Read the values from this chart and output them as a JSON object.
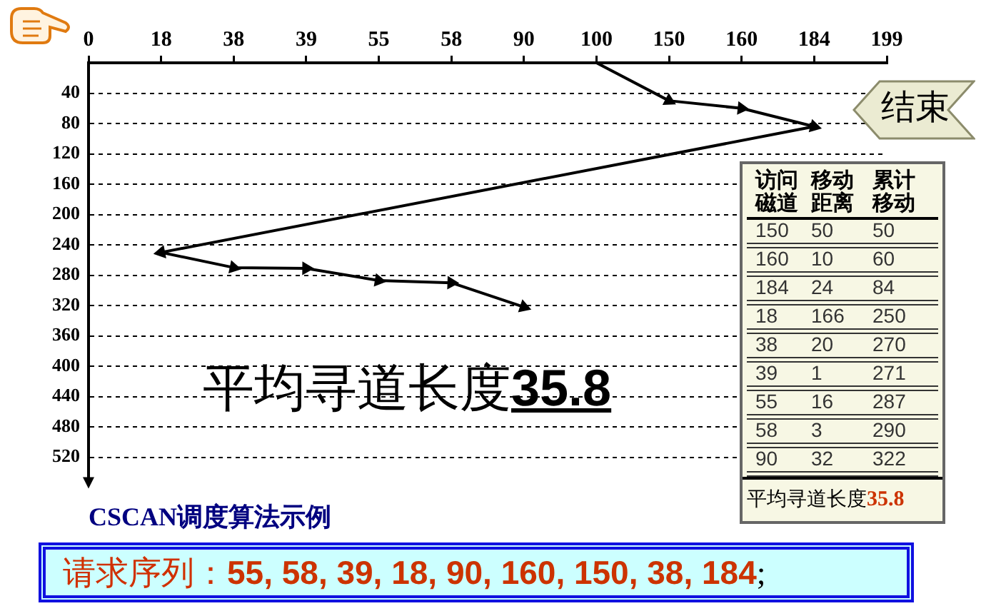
{
  "chart_data": [
    {
      "type": "line",
      "title": "CSCAN调度算法示例",
      "categories": [
        "0",
        "18",
        "38",
        "39",
        "55",
        "58",
        "90",
        "100",
        "150",
        "160",
        "184",
        "199"
      ],
      "series": [
        {
          "color": "#000000",
          "x": [
            "100",
            "150",
            "160",
            "184",
            "18",
            "38",
            "39",
            "55",
            "58",
            "90"
          ],
          "values": [
            0,
            50,
            60,
            84,
            250,
            270,
            271,
            287,
            290,
            322
          ]
        }
      ],
      "ylim": [
        550,
        0
      ],
      "yticks": [
        40,
        80,
        120,
        160,
        200,
        240,
        280,
        320,
        360,
        400,
        440,
        480,
        520
      ],
      "grid": "y",
      "marker": "triangle",
      "line_style": "solid",
      "annotations": [
        "平均寻道长度35.8",
        "结束",
        "请求序列：55, 58, 39, 18, 90, 160, 150, 38, 184;"
      ]
    },
    {
      "type": "other",
      "categories": [
        "访问磁道",
        "移动距离",
        "累计移动"
      ],
      "annotations": [
        "150",
        "50",
        "50",
        "160",
        "10",
        "60",
        "184",
        "24",
        "84",
        "18",
        "166",
        "250",
        "38",
        "20",
        "270",
        "39",
        "1",
        "271",
        "55",
        "16",
        "287",
        "58",
        "3",
        "290",
        "90",
        "32",
        "322",
        "平均寻道长度35.8"
      ]
    }
  ]
}
